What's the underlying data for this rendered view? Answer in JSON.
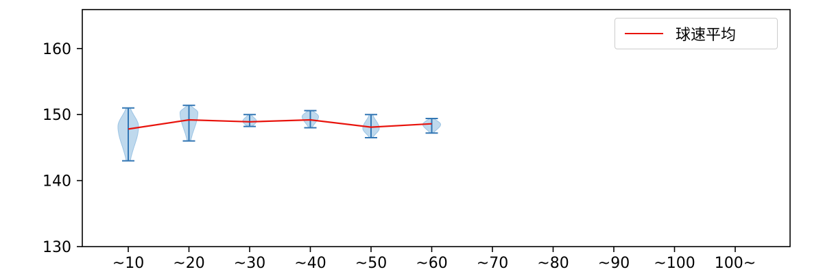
{
  "chart_data": {
    "type": "violin",
    "title": "",
    "xlabel": "",
    "ylabel": "",
    "categories": [
      "~10",
      "~20",
      "~30",
      "~40",
      "~50",
      "~60",
      "~70",
      "~80",
      "~90",
      "~100",
      "100~"
    ],
    "yticks": [
      130,
      140,
      150,
      160
    ],
    "ylim": [
      130,
      165.9
    ],
    "grid": false,
    "legend": {
      "label": "球速平均",
      "position": "upper right"
    },
    "colors": {
      "violin_fill": "#b8d5eb",
      "violin_edge": "#9cc4e4",
      "range_bar": "#3377b4",
      "mean_line": "#e8130c",
      "axis": "#000000",
      "tick_label": "#000000"
    },
    "violins": [
      {
        "category": "~10",
        "min": 143.0,
        "max": 151.0,
        "mean": 147.8,
        "peak": 148.2,
        "width": 15
      },
      {
        "category": "~20",
        "min": 146.0,
        "max": 151.4,
        "mean": 149.2,
        "peak": 150.3,
        "width": 13
      },
      {
        "category": "~30",
        "min": 148.2,
        "max": 150.0,
        "mean": 148.9,
        "peak": 149.0,
        "width": 10
      },
      {
        "category": "~40",
        "min": 148.0,
        "max": 150.6,
        "mean": 149.2,
        "peak": 149.7,
        "width": 12
      },
      {
        "category": "~50",
        "min": 146.5,
        "max": 150.0,
        "mean": 148.1,
        "peak": 147.9,
        "width": 12
      },
      {
        "category": "~60",
        "min": 147.2,
        "max": 149.4,
        "mean": 148.6,
        "peak": 148.5,
        "width": 13
      }
    ],
    "mean_series_name": "球速平均"
  }
}
